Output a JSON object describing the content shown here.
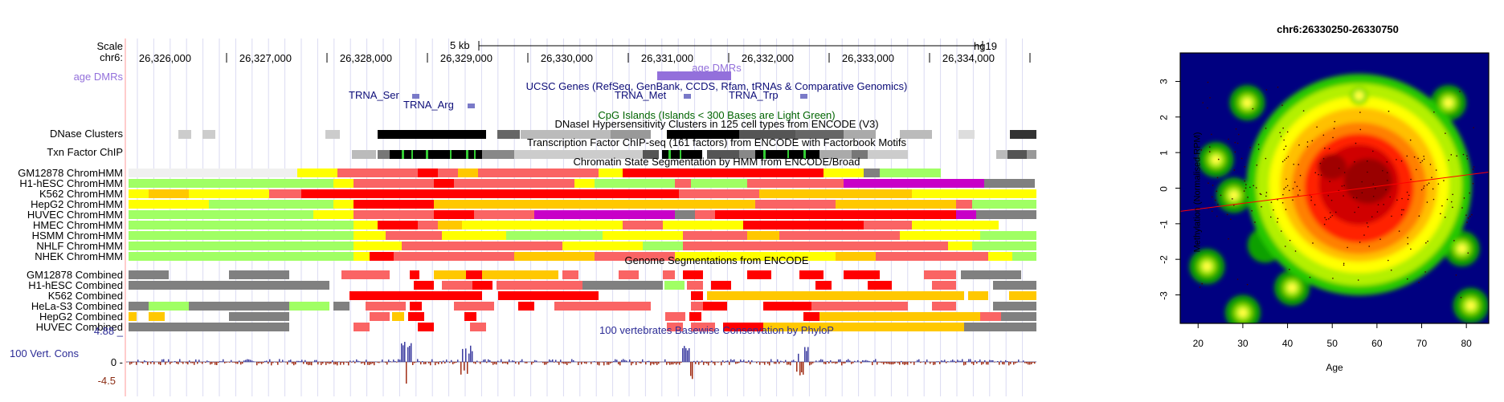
{
  "browser": {
    "scale_label": "Scale",
    "chrom_label": "chr6:",
    "scale_text": "5 kb",
    "assembly": "hg19",
    "coords": [
      "26,326,000",
      "26,327,000",
      "26,328,000",
      "26,329,000",
      "26,330,000",
      "26,331,000",
      "26,332,000",
      "26,333,000",
      "26,334,000"
    ],
    "age_dmrs": {
      "left_label": "age DMRs",
      "title": "age DMRs",
      "color": "#9370db"
    },
    "ucsc_genes": {
      "title": "UCSC Genes (RefSeq, GenBank, CCDS, Rfam, tRNAs & Comparative Genomics)",
      "genes": [
        "TRNA_Ser",
        "TRNA_Arg",
        "TRNA_Met",
        "TRNA_Trp"
      ],
      "color": "#0c0c78"
    },
    "cpg": {
      "title": "CpG Islands (Islands < 300 Bases are Light Green)",
      "color": "#006400"
    },
    "dnase": {
      "label": "DNase Clusters",
      "title": "DNaseI Hypersensitivity Clusters in 125 cell types from ENCODE (V3)"
    },
    "tfbs": {
      "label": "Txn Factor ChIP",
      "title": "Transcription Factor ChIP-seq (161 factors) from ENCODE with Factorbook Motifs"
    },
    "chromhmm": {
      "title": "Chromatin State Segmentation by HMM from ENCODE/Broad",
      "tracks": [
        "GM12878 ChromHMM",
        "H1-hESC ChromHMM",
        "K562 ChromHMM",
        "HepG2 ChromHMM",
        "HUVEC ChromHMM",
        "HMEC ChromHMM",
        "HSMM ChromHMM",
        "NHLF ChromHMM",
        "NHEK ChromHMM"
      ]
    },
    "segmentations": {
      "title": "Genome Segmentations from ENCODE",
      "tracks": [
        "GM12878 Combined",
        "H1-hESC Combined",
        "K562 Combined",
        "HeLa-S3 Combined",
        "HepG2 Combined",
        "HUVEC Combined"
      ]
    },
    "conservation": {
      "title": "100 vertebrates Basewise Conservation by PhyloP",
      "label": "100 Vert. Cons",
      "max": "4.88 _",
      "zero": "0 -",
      "min": "-4.5"
    },
    "colors": {
      "bright_red": "#ff0000",
      "red": "#fa6464",
      "orange": "#ffc800",
      "yellow": "#ffff00",
      "light_green": "#a0ff64",
      "purple": "#c800c8",
      "gray": "#808080",
      "light_gray": "#f0f0f0",
      "green": "#00b050"
    }
  },
  "heatmap": {
    "title": "chr6:26330250-26330750",
    "xlabel": "Age",
    "ylabel": "Methylation (Normalised RPM)",
    "x_ticks": [
      "20",
      "30",
      "40",
      "50",
      "60",
      "70",
      "80"
    ],
    "y_ticks": [
      "3",
      "2",
      "1",
      "0",
      "-1",
      "-2",
      "-3"
    ],
    "colors": {
      "background": "#000080",
      "low": "#00c000",
      "mid": "#ffff00",
      "high": "#ff8000",
      "peak": "#8b0000",
      "fit_line": "#ff0000"
    }
  },
  "chart_data": {
    "type": "scatter",
    "title": "chr6:26330250-26330750",
    "xlabel": "Age",
    "ylabel": "Methylation (Normalised RPM)",
    "xlim": [
      16,
      85
    ],
    "ylim": [
      -3.8,
      3.8
    ],
    "density_centers": [
      [
        57,
        0.1
      ],
      [
        47,
        0.5
      ],
      [
        62,
        -0.6
      ],
      [
        52,
        1.4
      ],
      [
        60,
        1.2
      ],
      [
        40,
        -0.5
      ],
      [
        35,
        -1.6
      ],
      [
        68,
        -0.3
      ],
      [
        72,
        1.0
      ],
      [
        48,
        -1.6
      ],
      [
        56,
        2.6
      ],
      [
        31,
        2.4
      ],
      [
        22,
        -2.2
      ],
      [
        30,
        -3.5
      ],
      [
        24,
        0.8
      ],
      [
        79,
        -1.7
      ],
      [
        76,
        2.4
      ],
      [
        41,
        -2.8
      ],
      [
        81,
        -3.3
      ],
      [
        28,
        -0.2
      ]
    ],
    "trend_line": {
      "x": [
        16,
        85
      ],
      "y": [
        -0.65,
        0.45
      ]
    }
  }
}
